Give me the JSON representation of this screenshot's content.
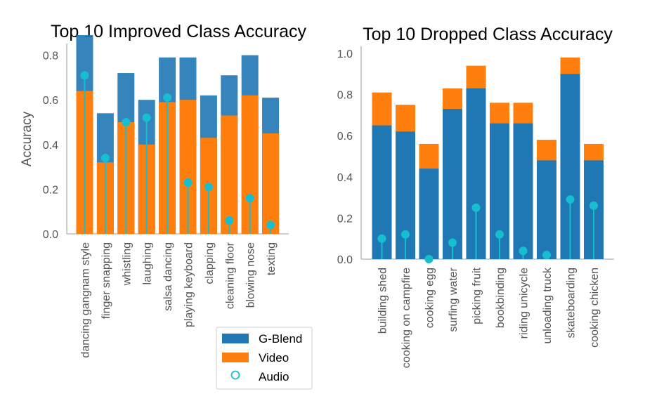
{
  "colors": {
    "gblend": "#1f77b4",
    "video": "#ff7f0e",
    "audio": "#17becf",
    "axis": "#b0b0b0"
  },
  "legend": {
    "placement": "bottom-center",
    "items": [
      "G-Blend",
      "Video",
      "Audio"
    ]
  },
  "chart_data": [
    {
      "type": "bar",
      "title": "Top 10 Improved Class Accuracy",
      "xlabel": "",
      "ylabel": "Accuracy",
      "ylim": [
        0,
        0.9
      ],
      "yticks": [
        "0.0",
        "0.2",
        "0.4",
        "0.6",
        "0.8"
      ],
      "grid": false,
      "categories": [
        "dancing gangnam style",
        "finger snapping",
        "whistling",
        "laughing",
        "salsa dancing",
        "playing keyboard",
        "clapping",
        "cleaning floor",
        "blowing nose",
        "texting"
      ],
      "series": [
        {
          "name": "G-Blend",
          "values": [
            0.89,
            0.54,
            0.72,
            0.6,
            0.79,
            0.79,
            0.62,
            0.71,
            0.8,
            0.61
          ]
        },
        {
          "name": "Video",
          "values": [
            0.64,
            0.32,
            0.5,
            0.4,
            0.59,
            0.6,
            0.43,
            0.53,
            0.62,
            0.45
          ]
        },
        {
          "name": "Audio",
          "values": [
            0.71,
            0.34,
            0.5,
            0.52,
            0.61,
            0.23,
            0.21,
            0.06,
            0.16,
            0.04
          ]
        }
      ]
    },
    {
      "type": "bar",
      "title": "Top 10 Dropped Class Accuracy",
      "xlabel": "",
      "ylabel": "",
      "ylim": [
        0,
        1.0
      ],
      "yticks": [
        "0.0",
        "0.2",
        "0.4",
        "0.6",
        "0.8",
        "1.0"
      ],
      "grid": false,
      "categories": [
        "building shed",
        "cooking on campfire",
        "cooking egg",
        "surfing water",
        "picking fruit",
        "bookbinding",
        "riding unicycle",
        "unloading truck",
        "skateboarding",
        "cooking chicken"
      ],
      "series": [
        {
          "name": "G-Blend",
          "values": [
            0.65,
            0.62,
            0.44,
            0.73,
            0.83,
            0.66,
            0.66,
            0.48,
            0.9,
            0.48
          ]
        },
        {
          "name": "Video",
          "values": [
            0.81,
            0.75,
            0.56,
            0.83,
            0.94,
            0.76,
            0.76,
            0.58,
            0.98,
            0.56
          ]
        },
        {
          "name": "Audio",
          "values": [
            0.1,
            0.12,
            0.0,
            0.08,
            0.25,
            0.12,
            0.04,
            0.02,
            0.29,
            0.26
          ]
        }
      ]
    }
  ]
}
